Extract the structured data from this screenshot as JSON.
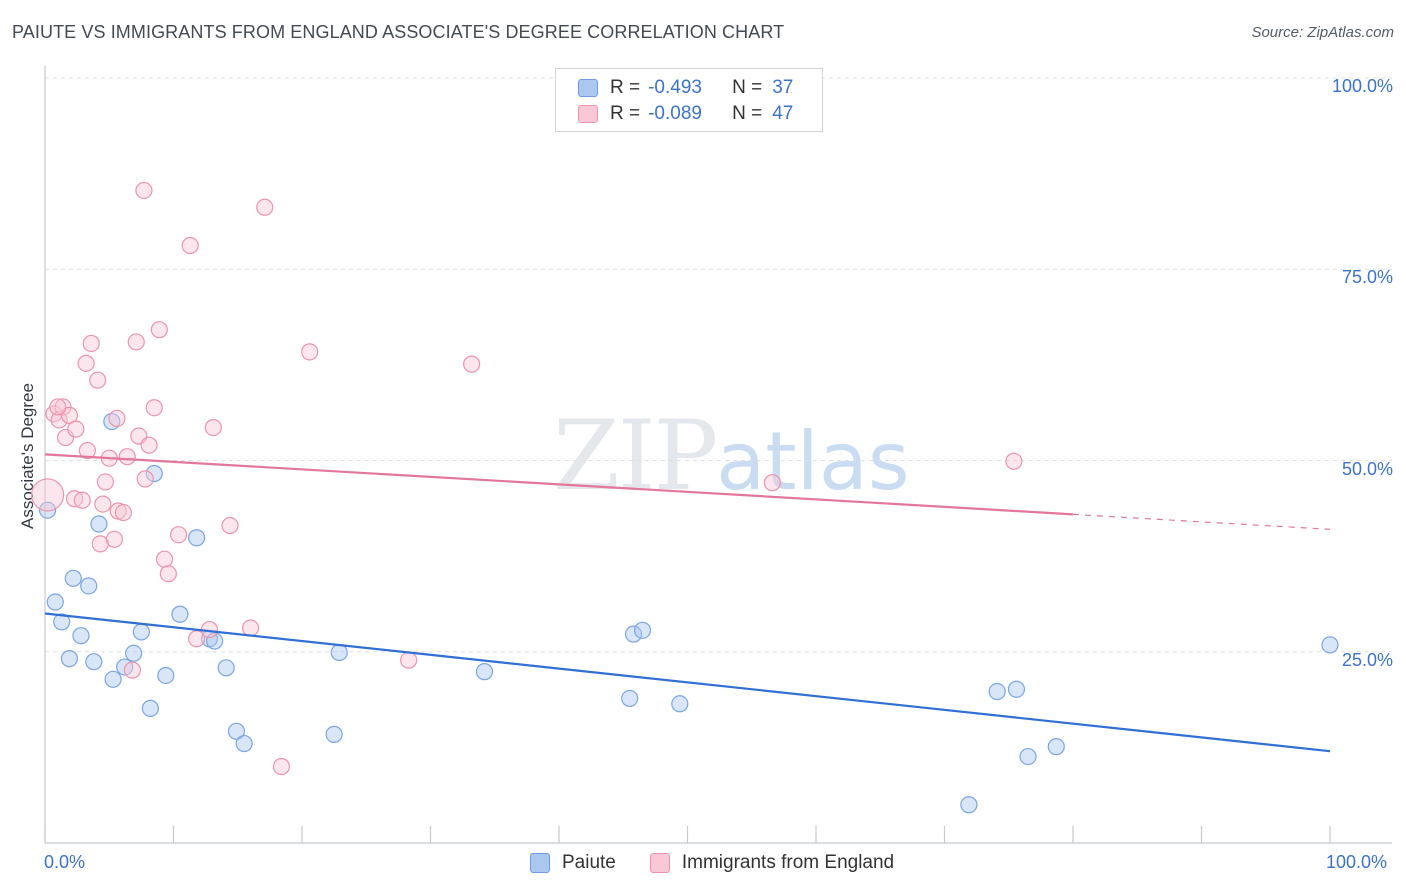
{
  "header": {
    "title": "PAIUTE VS IMMIGRANTS FROM ENGLAND ASSOCIATE'S DEGREE CORRELATION CHART",
    "source": "Source: ZipAtlas.com"
  },
  "watermark": {
    "zip": "ZIP",
    "atlas": "atlas"
  },
  "stats_box": {
    "rows": [
      {
        "r_label": "R =",
        "r_value": "-0.493",
        "n_label": "N =",
        "n_value": "37",
        "color": "#aac8ee",
        "border": "#6d9de0"
      },
      {
        "r_label": "R =",
        "r_value": "-0.089",
        "n_label": "N =",
        "n_value": "47",
        "color": "#f8c8d6",
        "border": "#ec93ad"
      }
    ]
  },
  "legend": {
    "items": [
      {
        "label": "Paiute",
        "color": "#aac8ee",
        "border": "#6d9de0"
      },
      {
        "label": "Immigrants from England",
        "color": "#f8c8d6",
        "border": "#ec93ad"
      }
    ]
  },
  "chart_data": {
    "type": "scatter",
    "title": "PAIUTE VS IMMIGRANTS FROM ENGLAND ASSOCIATE'S DEGREE CORRELATION CHART",
    "xlabel": "",
    "ylabel": "Associate's Degree",
    "xlim": [
      0,
      100
    ],
    "ylim": [
      0,
      100
    ],
    "x_tick_labels": [
      "0.0%",
      "100.0%"
    ],
    "y_tick_labels": [
      "25.0%",
      "50.0%",
      "75.0%",
      "100.0%"
    ],
    "y_ticks": [
      25,
      50,
      75,
      100
    ],
    "grid": "horizontal dashed",
    "legend_position": "bottom-center",
    "colors": {
      "paiute": "#3b73d4",
      "england": "#e2779b"
    },
    "series": [
      {
        "name": "Paiute",
        "r": -0.493,
        "n": 37,
        "trend": {
          "x": [
            0,
            100
          ],
          "y": [
            30.0,
            12.0
          ],
          "solid_until": 100
        },
        "points": [
          [
            0.2,
            43.5
          ],
          [
            0.8,
            31.5
          ],
          [
            1.3,
            28.9
          ],
          [
            1.9,
            24.1
          ],
          [
            2.2,
            34.6
          ],
          [
            2.8,
            27.1
          ],
          [
            3.4,
            33.6
          ],
          [
            3.8,
            23.7
          ],
          [
            4.2,
            41.7
          ],
          [
            5.2,
            55.1
          ],
          [
            5.3,
            21.4
          ],
          [
            6.2,
            23.0
          ],
          [
            6.9,
            24.8
          ],
          [
            7.5,
            27.6
          ],
          [
            8.2,
            17.6
          ],
          [
            8.5,
            48.3
          ],
          [
            9.4,
            21.9
          ],
          [
            10.5,
            29.9
          ],
          [
            11.8,
            39.9
          ],
          [
            12.8,
            26.7
          ],
          [
            13.2,
            26.4
          ],
          [
            14.1,
            22.9
          ],
          [
            14.9,
            14.6
          ],
          [
            15.5,
            13.0
          ],
          [
            22.5,
            14.2
          ],
          [
            22.9,
            24.9
          ],
          [
            34.2,
            22.4
          ],
          [
            45.5,
            18.9
          ],
          [
            45.8,
            27.3
          ],
          [
            46.5,
            27.8
          ],
          [
            49.4,
            18.2
          ],
          [
            74.1,
            19.8
          ],
          [
            75.6,
            20.1
          ],
          [
            76.5,
            11.3
          ],
          [
            78.7,
            12.6
          ],
          [
            71.9,
            5.0
          ],
          [
            100.0,
            25.9
          ]
        ]
      },
      {
        "name": "Immigrants from England",
        "r": -0.089,
        "n": 47,
        "trend": {
          "x": [
            0,
            100
          ],
          "y": [
            50.8,
            41.0
          ],
          "solid_until": 80
        },
        "points": [
          [
            0.2,
            45.5
          ],
          [
            0.7,
            56.1
          ],
          [
            1.1,
            55.3
          ],
          [
            1.4,
            57.0
          ],
          [
            1.6,
            53.0
          ],
          [
            1.9,
            55.9
          ],
          [
            2.3,
            45.0
          ],
          [
            2.4,
            54.1
          ],
          [
            2.9,
            44.8
          ],
          [
            3.2,
            62.7
          ],
          [
            3.3,
            51.3
          ],
          [
            3.6,
            65.3
          ],
          [
            4.1,
            60.5
          ],
          [
            4.3,
            39.1
          ],
          [
            4.5,
            44.3
          ],
          [
            4.7,
            47.2
          ],
          [
            5.0,
            50.3
          ],
          [
            5.4,
            39.7
          ],
          [
            5.6,
            55.5
          ],
          [
            5.7,
            43.4
          ],
          [
            6.1,
            43.2
          ],
          [
            6.4,
            50.5
          ],
          [
            6.8,
            22.6
          ],
          [
            7.1,
            65.5
          ],
          [
            7.3,
            53.2
          ],
          [
            7.7,
            85.3
          ],
          [
            7.8,
            47.6
          ],
          [
            8.1,
            52.0
          ],
          [
            8.5,
            56.9
          ],
          [
            8.9,
            67.1
          ],
          [
            9.3,
            37.1
          ],
          [
            9.6,
            35.2
          ],
          [
            10.4,
            40.3
          ],
          [
            11.3,
            78.1
          ],
          [
            11.8,
            26.7
          ],
          [
            12.8,
            27.9
          ],
          [
            13.1,
            54.3
          ],
          [
            14.4,
            41.5
          ],
          [
            16.0,
            28.1
          ],
          [
            17.1,
            83.1
          ],
          [
            18.4,
            10.0
          ],
          [
            20.6,
            64.2
          ],
          [
            28.3,
            23.9
          ],
          [
            33.2,
            62.6
          ],
          [
            56.6,
            47.1
          ],
          [
            75.4,
            49.9
          ],
          [
            1.0,
            57.0
          ]
        ]
      }
    ]
  }
}
